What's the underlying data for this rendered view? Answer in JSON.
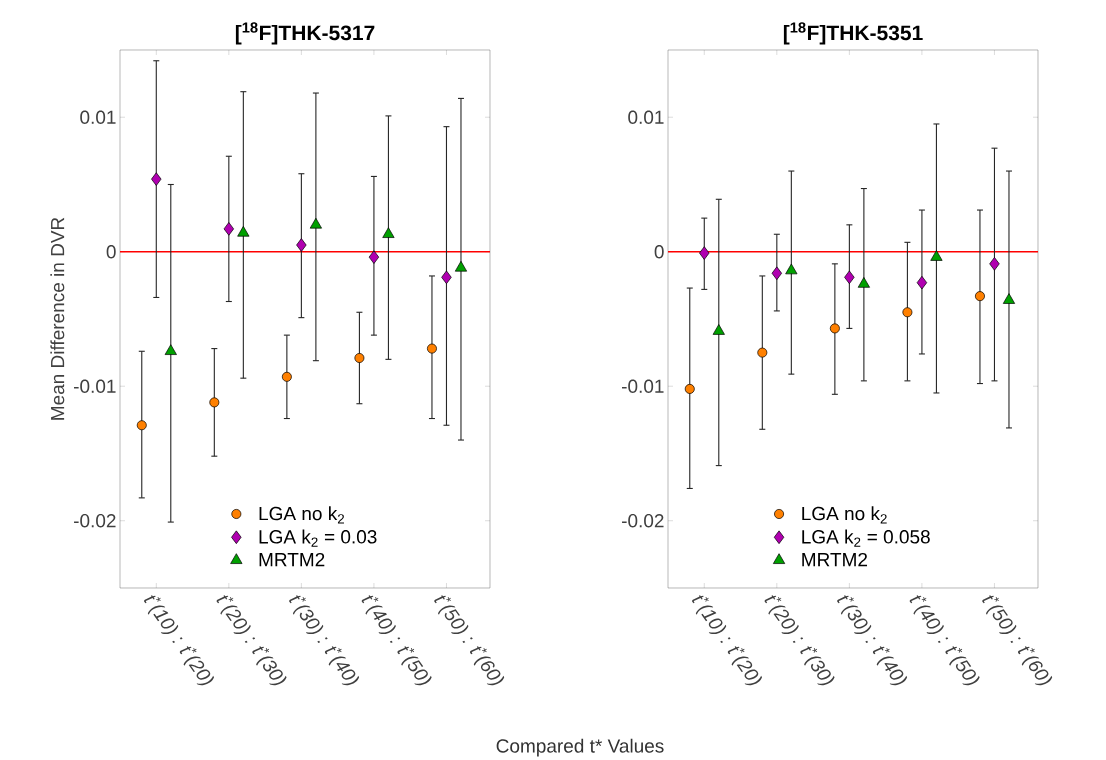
{
  "chart_data": [
    {
      "type": "scatter",
      "title": "[$^{18}$F]THK-5317",
      "ylabel": "Mean Difference in DVR",
      "xlabel": "Compared t* Values",
      "categories": [
        "t$^{*}$(10) : t$^{*}$(20)",
        "t$^{*}$(20) : t$^{*}$(30)",
        "t$^{*}$(30) : t$^{*}$(40)",
        "t$^{*}$(40) : t$^{*}$(50)",
        "t$^{*}$(50) : t$^{*}$(60)"
      ],
      "ylim": [
        -0.025,
        0.015
      ],
      "yticks": [
        -0.02,
        -0.01,
        0,
        0.01
      ],
      "legend": "bottom",
      "grid": false,
      "ref_lines": [
        {
          "axis": "y",
          "value": 0,
          "color": "#ff0000"
        }
      ],
      "series": [
        {
          "name": "LGA no k$_{2}$",
          "color": "#ff8000",
          "marker": "circle",
          "values": [
            -0.0129,
            -0.0112,
            -0.0093,
            -0.0079,
            -0.0072
          ],
          "errors": [
            [
              -0.0183,
              -0.0074
            ],
            [
              -0.0152,
              -0.0072
            ],
            [
              -0.0124,
              -0.0062
            ],
            [
              -0.0113,
              -0.0045
            ],
            [
              -0.0124,
              -0.0018
            ]
          ]
        },
        {
          "name": "LGA k$_{2}$ = 0.03",
          "color": "#b000b0",
          "marker": "diamond",
          "values": [
            0.0054,
            0.0017,
            0.0005,
            -0.0004,
            -0.0019
          ],
          "errors": [
            [
              -0.0034,
              0.0142
            ],
            [
              -0.0037,
              0.0071
            ],
            [
              -0.0049,
              0.0058
            ],
            [
              -0.0062,
              0.0056
            ],
            [
              -0.0129,
              0.0093
            ]
          ]
        },
        {
          "name": "MRTM2",
          "color": "#00a000",
          "marker": "triangle",
          "values": [
            -0.0074,
            0.0014,
            0.002,
            0.0013,
            -0.0012
          ],
          "errors": [
            [
              -0.0201,
              0.005
            ],
            [
              -0.0094,
              0.0119
            ],
            [
              -0.0081,
              0.0118
            ],
            [
              -0.008,
              0.0101
            ],
            [
              -0.014,
              0.0114
            ]
          ]
        }
      ]
    },
    {
      "type": "scatter",
      "title": "[$^{18}$F]THK-5351",
      "categories": [
        "t$^{*}$(10) : t$^{*}$(20)",
        "t$^{*}$(20) : t$^{*}$(30)",
        "t$^{*}$(30) : t$^{*}$(40)",
        "t$^{*}$(40) : t$^{*}$(50)",
        "t$^{*}$(50) : t$^{*}$(60)"
      ],
      "ylim": [
        -0.025,
        0.015
      ],
      "yticks": [
        -0.02,
        -0.01,
        0,
        0.01
      ],
      "legend": "bottom",
      "grid": false,
      "ref_lines": [
        {
          "axis": "y",
          "value": 0,
          "color": "#ff0000"
        }
      ],
      "series": [
        {
          "name": "LGA no k$_{2}$",
          "color": "#ff8000",
          "marker": "circle",
          "values": [
            -0.0102,
            -0.0075,
            -0.0057,
            -0.0045,
            -0.0033
          ],
          "errors": [
            [
              -0.0176,
              -0.0027
            ],
            [
              -0.0132,
              -0.0018
            ],
            [
              -0.0106,
              -0.0009
            ],
            [
              -0.0096,
              0.0007
            ],
            [
              -0.0098,
              0.0031
            ]
          ]
        },
        {
          "name": "LGA k$_{2}$ = 0.058",
          "color": "#b000b0",
          "marker": "diamond",
          "values": [
            -0.0001,
            -0.0016,
            -0.0019,
            -0.0023,
            -0.0009
          ],
          "errors": [
            [
              -0.0028,
              0.0025
            ],
            [
              -0.0044,
              0.0013
            ],
            [
              -0.0057,
              0.002
            ],
            [
              -0.0076,
              0.0031
            ],
            [
              -0.0096,
              0.0077
            ]
          ]
        },
        {
          "name": "MRTM2",
          "color": "#00a000",
          "marker": "triangle",
          "values": [
            -0.0059,
            -0.0014,
            -0.0024,
            -0.0004,
            -0.0036
          ],
          "errors": [
            [
              -0.0159,
              0.0039
            ],
            [
              -0.0091,
              0.006
            ],
            [
              -0.0096,
              0.0047
            ],
            [
              -0.0105,
              0.0095
            ],
            [
              -0.0131,
              0.006
            ]
          ]
        }
      ]
    }
  ]
}
